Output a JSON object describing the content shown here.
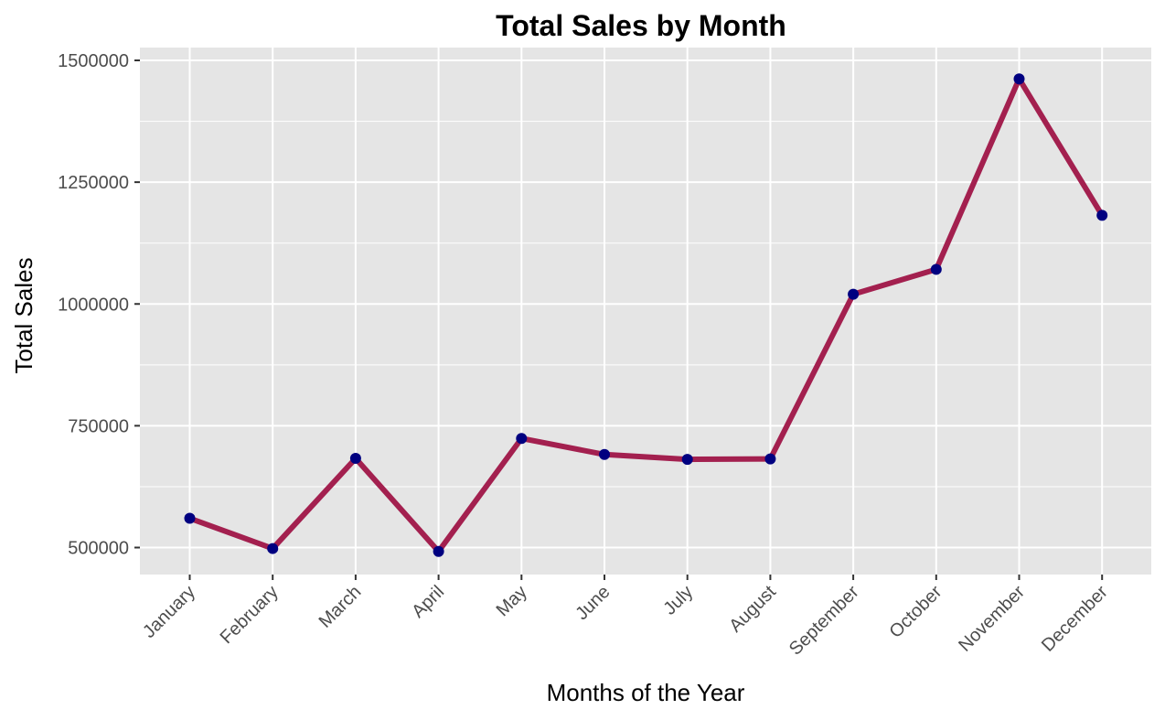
{
  "chart_data": {
    "type": "line",
    "title": "Total Sales by Month",
    "xlabel": "Months of the Year",
    "ylabel": "Total Sales",
    "categories": [
      "January",
      "February",
      "March",
      "April",
      "May",
      "June",
      "July",
      "August",
      "September",
      "October",
      "November",
      "December"
    ],
    "values": [
      560000,
      498000,
      683000,
      492000,
      724000,
      691000,
      681000,
      682000,
      1020000,
      1071000,
      1462000,
      1182000
    ],
    "ylim": [
      500000,
      1500000
    ],
    "yticks": [
      500000,
      750000,
      1000000,
      1250000,
      1500000
    ],
    "ytick_labels": [
      "500000",
      "750000",
      "1000000",
      "1250000",
      "1500000"
    ],
    "grid": true,
    "colors": {
      "panel_bg": "#e5e5e5",
      "grid": "#ffffff",
      "line": "#a3204f",
      "point": "#000080",
      "tick_text": "#4d4d4d",
      "tick_mark": "#333333"
    }
  }
}
